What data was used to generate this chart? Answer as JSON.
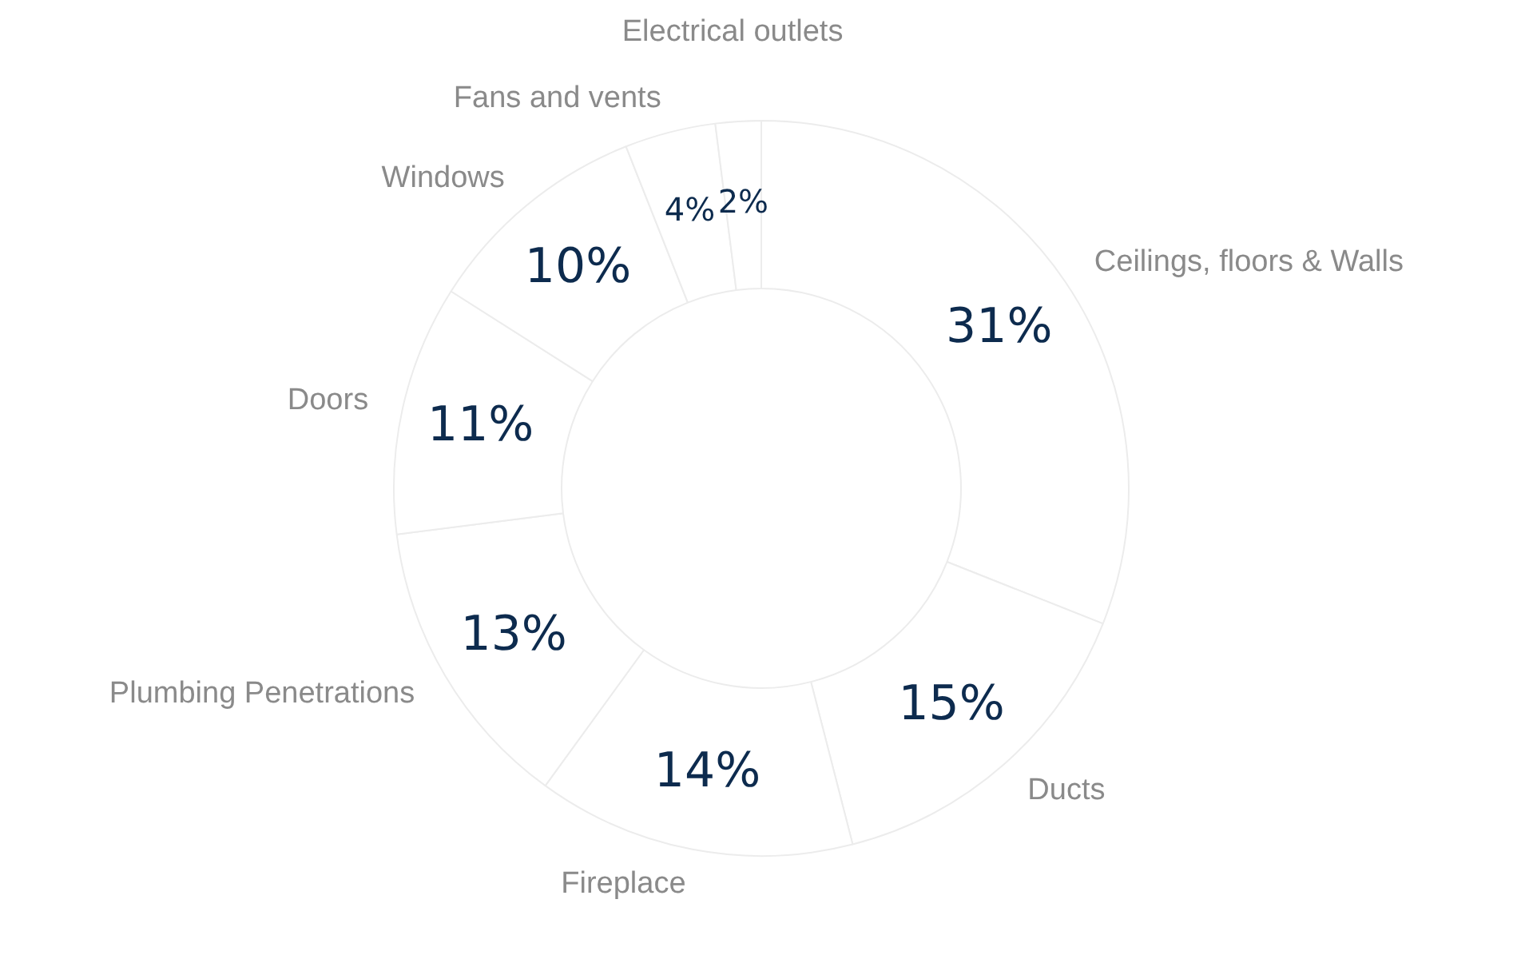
{
  "chart_data": {
    "type": "donut",
    "categories": [
      "Ceilings, floors & Walls",
      "Ducts",
      "Fireplace",
      "Plumbing Penetrations",
      "Doors",
      "Windows",
      "Fans and vents",
      "Electrical outlets"
    ],
    "values": [
      31,
      15,
      14,
      13,
      11,
      10,
      4,
      2
    ],
    "colors": [
      "#ffffff",
      "#ffffff",
      "#ffffff",
      "#ffffff",
      "#ffffff",
      "#ffffff",
      "#ffffff",
      "#ffffff"
    ],
    "value_labels": [
      "31%",
      "15%",
      "14%",
      "13%",
      "11%",
      "10%",
      "4%",
      "2%"
    ]
  }
}
